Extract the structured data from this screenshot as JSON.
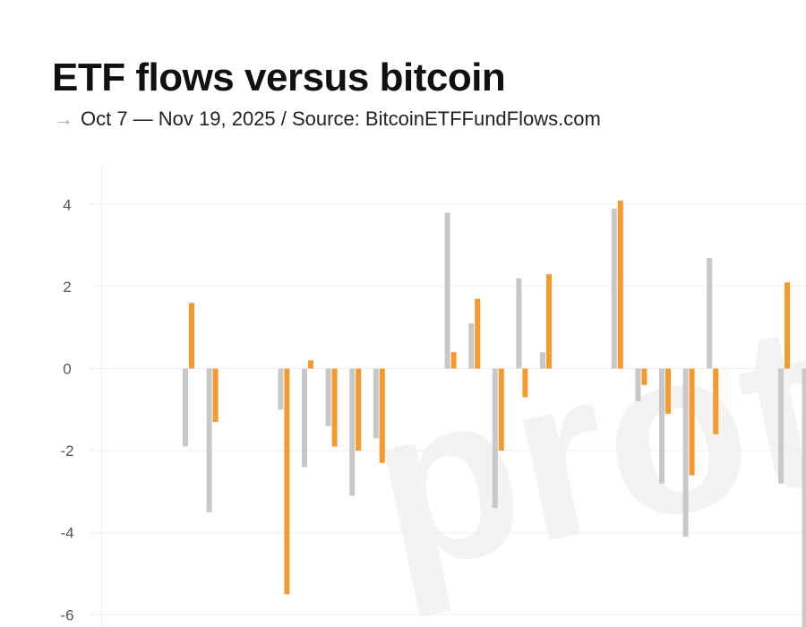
{
  "chart_data": {
    "type": "bar",
    "title": "ETF flows versus bitcoin",
    "subtitle": "Oct 7 — Nov 19, 2025 / Source: BitcoinETFFundFlows.com",
    "subtitle_icon": "arrow-right-icon",
    "watermark": "proto",
    "xlabel": "",
    "ylabel": "",
    "ylim": [
      -6.3,
      5
    ],
    "yticks": [
      4,
      2,
      0,
      -2,
      -4,
      -6
    ],
    "grid": true,
    "x": [
      0,
      1,
      4,
      5,
      6,
      7,
      8,
      11,
      12,
      13,
      14,
      15,
      18,
      19,
      20,
      21,
      22,
      25,
      26
    ],
    "series": [
      {
        "name": "gray",
        "color": "#c8c8c8",
        "values": [
          -1.9,
          -3.5,
          -1.0,
          -2.4,
          -1.4,
          -3.1,
          -1.7,
          3.8,
          1.1,
          -3.4,
          2.2,
          0.4,
          3.9,
          -0.8,
          -2.8,
          -4.1,
          2.7,
          -2.8,
          -6.5
        ]
      },
      {
        "name": "orange",
        "color": "#f59b2e",
        "values": [
          1.6,
          -1.3,
          -5.5,
          0.2,
          -1.9,
          -2.0,
          -2.3,
          0.4,
          1.7,
          -2.0,
          -0.7,
          2.3,
          4.1,
          -0.4,
          -1.1,
          -2.6,
          -1.6,
          2.1,
          null
        ]
      }
    ]
  }
}
